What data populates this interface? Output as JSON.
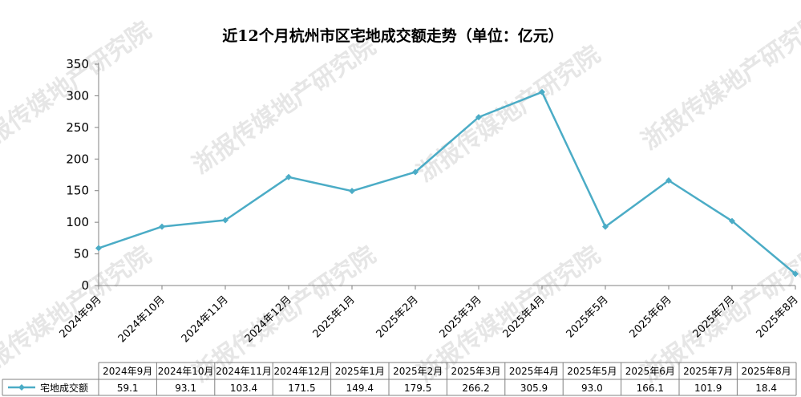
{
  "watermark": {
    "text": "浙报传媒地产研究院"
  },
  "colors": {
    "series": "#4bacc6",
    "axis": "#808080",
    "table_border": "#808080"
  },
  "chart_data": {
    "type": "line",
    "title": "近12个月杭州市区宅地成交额走势（单位：亿元）",
    "xlabel": "",
    "ylabel": "",
    "ylim": [
      0,
      350
    ],
    "yticks": [
      0,
      50,
      100,
      150,
      200,
      250,
      300,
      350
    ],
    "grid": false,
    "legend": "data-table",
    "categories": [
      "2024年9月",
      "2024年10月",
      "2024年11月",
      "2024年12月",
      "2025年1月",
      "2025年2月",
      "2025年3月",
      "2025年4月",
      "2025年5月",
      "2025年6月",
      "2025年7月",
      "2025年8月"
    ],
    "series": [
      {
        "name": "宅地成交额",
        "values": [
          59.1,
          93.1,
          103.4,
          171.5,
          149.4,
          179.5,
          266.2,
          305.9,
          93.0,
          166.1,
          101.9,
          18.4
        ],
        "table_values": [
          "59.1",
          "93.1",
          "103.4",
          "171.5",
          "149.4",
          "179.5",
          "266.2",
          "305.9",
          "93.0",
          "166.1",
          "101.9",
          "18.4"
        ],
        "marker": "diamond"
      }
    ]
  }
}
